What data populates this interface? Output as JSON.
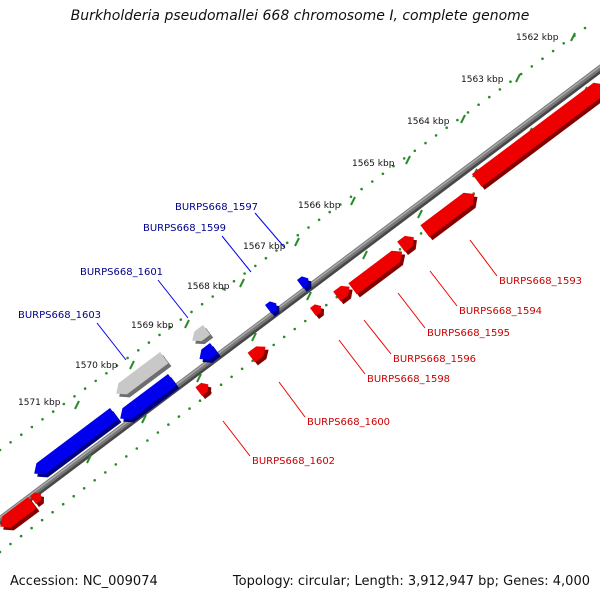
{
  "title": "Burkholderia pseudomallei 668 chromosome I, complete genome",
  "footer": {
    "accession": "Accession: NC_009074",
    "summary": "Topology: circular; Length: 3,912,947 bp; Genes: 4,000"
  },
  "colors": {
    "backbone": "#777777",
    "forward_gene": "#0000ee",
    "reverse_gene": "#ee0000",
    "unlabeled_gene": "#c8c8c8",
    "dots": "#2a8a2a",
    "forward_label": "#00008b",
    "reverse_label": "#cc0000"
  },
  "scale_ticks": [
    {
      "kbp": 1562,
      "label": "1562 kbp"
    },
    {
      "kbp": 1563,
      "label": "1563 kbp"
    },
    {
      "kbp": 1564,
      "label": "1564 kbp"
    },
    {
      "kbp": 1565,
      "label": "1565 kbp"
    },
    {
      "kbp": 1566,
      "label": "1566 kbp"
    },
    {
      "kbp": 1567,
      "label": "1567 kbp"
    },
    {
      "kbp": 1568,
      "label": "1568 kbp"
    },
    {
      "kbp": 1569,
      "label": "1569 kbp"
    },
    {
      "kbp": 1570,
      "label": "1570 kbp"
    },
    {
      "kbp": 1571,
      "label": "1571 kbp"
    }
  ],
  "forward_genes": [
    {
      "label": "BURPS668_1597",
      "type": "labeled"
    },
    {
      "label": "BURPS668_1599",
      "type": "labeled"
    },
    {
      "label": "BURPS668_1601",
      "type": "labeled"
    },
    {
      "label": "BURPS668_1603",
      "type": "labeled"
    }
  ],
  "reverse_genes": [
    {
      "label": "BURPS668_1593"
    },
    {
      "label": "BURPS668_1594"
    },
    {
      "label": "BURPS668_1595"
    },
    {
      "label": "BURPS668_1596"
    },
    {
      "label": "BURPS668_1598"
    },
    {
      "label": "BURPS668_1600"
    },
    {
      "label": "BURPS668_1602"
    }
  ]
}
